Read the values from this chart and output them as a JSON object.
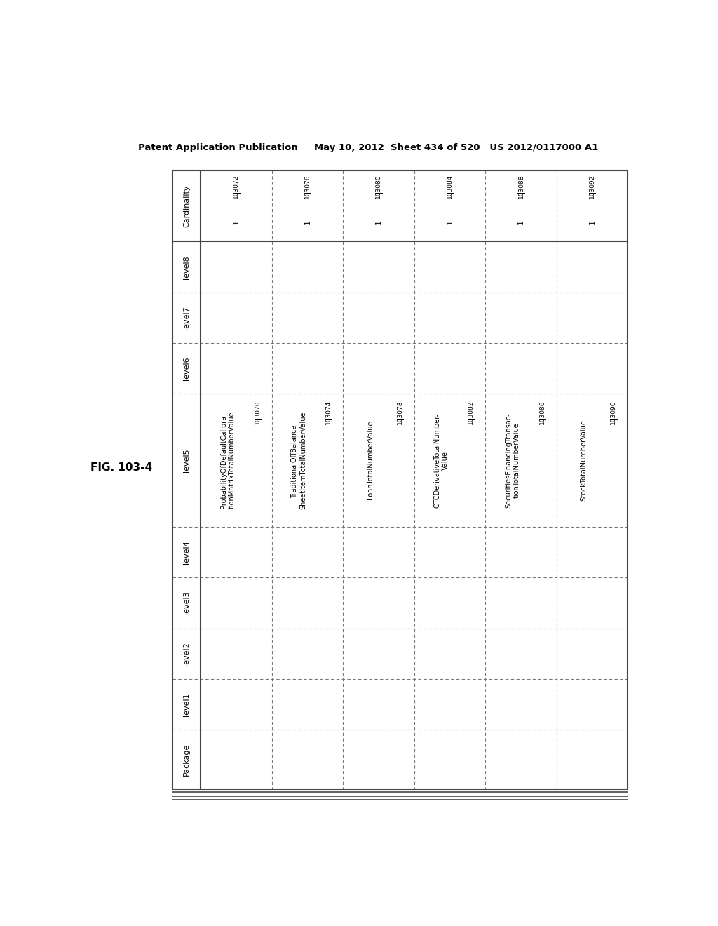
{
  "header_text": "Patent Application Publication     May 10, 2012  Sheet 434 of 520   US 2012/0117000 A1",
  "figure_label": "FIG. 103-4",
  "row_labels": [
    "Cardinality",
    "level8",
    "level7",
    "level6",
    "level5",
    "level4",
    "level3",
    "level2",
    "level1",
    "Package"
  ],
  "data_cols": 6,
  "level5_texts": [
    "ProbabilityOfDefaultCalibra-\ntionMatrixTotalNumberValue",
    "TraditionalOffBalance-\nSheetItemTotalNumberValue",
    "LoanTotalNumberValue",
    "OTCDerivativeTotalNumber-\nValue",
    "SecuritiesFinancingTransac-\ntionTotalNumberValue",
    "StockTotalNumberValue"
  ],
  "level5_refs": [
    "103070",
    "103074",
    "103078",
    "103082",
    "103086",
    "103090"
  ],
  "cardinality_vals": [
    "1",
    "1",
    "1",
    "1",
    "1",
    "1"
  ],
  "cardinality_refs": [
    "103072",
    "103076",
    "103080",
    "103084",
    "103088",
    "103092"
  ],
  "bg_color": "#ffffff",
  "text_color": "#000000",
  "grid_color": "#444444",
  "dashed_color": "#777777"
}
